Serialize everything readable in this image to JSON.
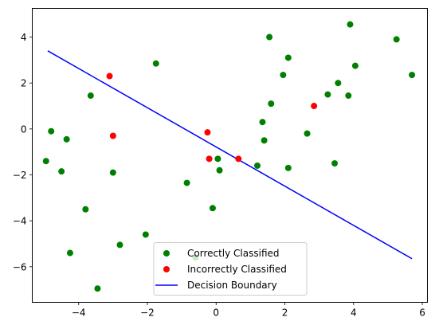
{
  "chart_data": {
    "type": "scatter",
    "title": "",
    "xlabel": "",
    "ylabel": "",
    "xlim": [
      -5.35,
      6.15
    ],
    "ylim": [
      -7.55,
      5.25
    ],
    "x_ticks": [
      -4,
      -2,
      0,
      2,
      4,
      6
    ],
    "y_ticks": [
      -6,
      -4,
      -2,
      0,
      2,
      4
    ],
    "x_tick_labels": [
      "−4",
      "−2",
      "0",
      "2",
      "4",
      "6"
    ],
    "y_tick_labels": [
      "−6",
      "−4",
      "−2",
      "0",
      "2",
      "4"
    ],
    "grid": false,
    "legend_position": "lower-center",
    "series": [
      {
        "name": "Correctly Classified",
        "kind": "scatter",
        "color": "#008000",
        "points": [
          [
            -4.95,
            -1.4
          ],
          [
            -4.8,
            -0.1
          ],
          [
            -4.5,
            -1.85
          ],
          [
            -4.35,
            -0.45
          ],
          [
            -4.25,
            -5.4
          ],
          [
            -3.8,
            -3.5
          ],
          [
            -3.65,
            1.45
          ],
          [
            -3.45,
            -6.95
          ],
          [
            -3.0,
            -1.9
          ],
          [
            -2.8,
            -5.05
          ],
          [
            -2.05,
            -4.6
          ],
          [
            -1.75,
            2.85
          ],
          [
            -0.85,
            -2.35
          ],
          [
            -0.6,
            -5.6
          ],
          [
            -0.1,
            -3.45
          ],
          [
            0.05,
            -1.3
          ],
          [
            0.1,
            -1.8
          ],
          [
            1.2,
            -1.6
          ],
          [
            1.35,
            0.3
          ],
          [
            1.4,
            -0.5
          ],
          [
            1.55,
            4.0
          ],
          [
            1.6,
            1.1
          ],
          [
            1.95,
            2.35
          ],
          [
            2.1,
            3.1
          ],
          [
            2.1,
            -1.7
          ],
          [
            2.65,
            -0.2
          ],
          [
            3.25,
            1.5
          ],
          [
            3.45,
            -1.5
          ],
          [
            3.55,
            2.0
          ],
          [
            3.85,
            1.45
          ],
          [
            3.9,
            4.55
          ],
          [
            4.05,
            2.75
          ],
          [
            5.25,
            3.9
          ],
          [
            5.7,
            2.35
          ]
        ]
      },
      {
        "name": "Incorrectly Classified",
        "kind": "scatter",
        "color": "#ff0000",
        "points": [
          [
            -3.1,
            2.3
          ],
          [
            -3.0,
            -0.3
          ],
          [
            -0.25,
            -0.15
          ],
          [
            -0.2,
            -1.3
          ],
          [
            0.65,
            -1.3
          ],
          [
            2.85,
            1.0
          ]
        ]
      },
      {
        "name": "Decision Boundary",
        "kind": "line",
        "color": "#0000ff",
        "points": [
          [
            -4.9,
            3.4
          ],
          [
            5.7,
            -5.65
          ]
        ]
      }
    ]
  }
}
